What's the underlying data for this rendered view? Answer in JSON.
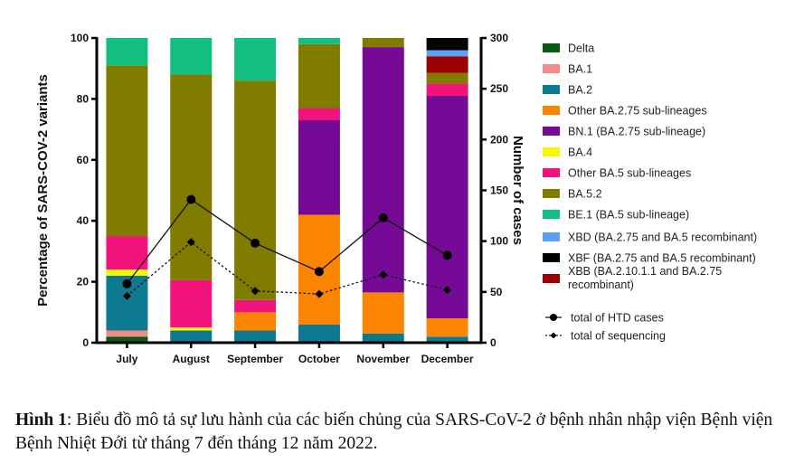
{
  "chart_data": {
    "type": "bar",
    "stacked": true,
    "categories": [
      "July",
      "August",
      "September",
      "October",
      "November",
      "December"
    ],
    "ylabel": "Percentage of SARS-COV-2 variants",
    "ylim": [
      0,
      100
    ],
    "yticks": [
      0,
      20,
      40,
      60,
      80,
      100
    ],
    "y2label": "Number of cases",
    "y2lim": [
      0,
      300
    ],
    "y2ticks": [
      0,
      50,
      100,
      150,
      200,
      250,
      300
    ],
    "grid": false,
    "legend_position": "right",
    "series": [
      {
        "name": "Delta",
        "color": "#0b5a12",
        "values": [
          2,
          0,
          0,
          0,
          0,
          0
        ]
      },
      {
        "name": "BA.1",
        "color": "#f48a8a",
        "values": [
          2,
          0,
          0,
          0,
          0,
          0
        ]
      },
      {
        "name": "BA.2",
        "color": "#0e7a92",
        "values": [
          18,
          4,
          4,
          6,
          3,
          2
        ]
      },
      {
        "name": "Other BA.2.75 sub-lineages",
        "color": "#fb8500",
        "values": [
          0,
          0,
          6,
          36,
          13.5,
          6
        ]
      },
      {
        "name": "BN.1 (BA.2.75 sub-lineage)",
        "color": "#740a96",
        "values": [
          0,
          0,
          0,
          31,
          80.5,
          73
        ]
      },
      {
        "name": "BA.4",
        "color": "#f7f707",
        "values": [
          2,
          1,
          0,
          0,
          0,
          0
        ]
      },
      {
        "name": "Other BA.5 sub-lineages",
        "color": "#f2137c",
        "values": [
          11,
          15.5,
          4,
          4,
          0,
          4
        ]
      },
      {
        "name": "BA.5.2",
        "color": "#7f7c00",
        "values": [
          56,
          67.5,
          72,
          21,
          3,
          3.5
        ]
      },
      {
        "name": "BE.1 (BA.5 sub-lineage)",
        "color": "#12bf7e",
        "values": [
          9,
          12,
          14,
          2,
          0,
          0
        ]
      },
      {
        "name": "XBB (BA.2.10.1.1 and BA.2.75 recombinant)",
        "color": "#9c0000",
        "values": [
          0,
          0,
          0,
          0,
          0,
          5.5
        ]
      },
      {
        "name": "XBD (BA.2.75 and BA.5 recombinant)",
        "color": "#5aa0f5",
        "values": [
          0,
          0,
          0,
          0,
          0,
          2
        ]
      },
      {
        "name": "XBF (BA.2.75 and BA.5 recombinant)",
        "color": "#000000",
        "values": [
          0,
          0,
          0,
          0,
          0,
          4
        ]
      }
    ],
    "legend_order": [
      "Delta",
      "BA.1",
      "BA.2",
      "Other BA.2.75 sub-lineages",
      "BN.1 (BA.2.75 sub-lineage)",
      "BA.4",
      "Other BA.5 sub-lineages",
      "BA.5.2",
      "BE.1 (BA.5 sub-lineage)",
      "XBD (BA.2.75 and BA.5 recombinant)",
      "XBF (BA.2.75 and BA.5 recombinant)",
      "XBB (BA.2.10.1.1 and BA.2.75 recombinant)"
    ],
    "lines": [
      {
        "name": "total of HTD cases",
        "axis": "right",
        "style": "solid",
        "marker": "circle",
        "values": [
          58,
          141,
          98,
          70,
          123,
          86
        ]
      },
      {
        "name": "total of sequencing",
        "axis": "right",
        "style": "dotted",
        "marker": "diamond",
        "values": [
          46,
          99,
          51,
          48,
          67,
          52
        ]
      }
    ]
  },
  "caption": {
    "label": "Hình 1",
    "text": ": Biểu đồ mô tả sự lưu hành của các biến chủng của SARS-CoV-2 ở bệnh nhân nhập viện Bệnh viện Bệnh Nhiệt Đới từ tháng 7 đến tháng 12 năm 2022."
  }
}
